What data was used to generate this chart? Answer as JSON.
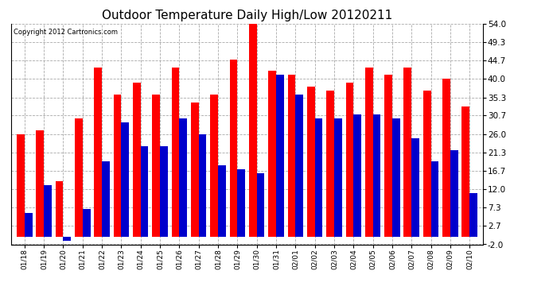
{
  "title": "Outdoor Temperature Daily High/Low 20120211",
  "copyright": "Copyright 2012 Cartronics.com",
  "dates": [
    "01/18",
    "01/19",
    "01/20",
    "01/21",
    "01/22",
    "01/23",
    "01/24",
    "01/25",
    "01/26",
    "01/27",
    "01/28",
    "01/29",
    "01/30",
    "01/31",
    "02/01",
    "02/02",
    "02/03",
    "02/04",
    "02/05",
    "02/06",
    "02/07",
    "02/08",
    "02/09",
    "02/10"
  ],
  "highs": [
    26,
    27,
    14,
    30,
    43,
    36,
    39,
    36,
    43,
    34,
    36,
    45,
    54,
    42,
    41,
    38,
    37,
    39,
    43,
    41,
    43,
    37,
    40,
    33
  ],
  "lows": [
    6,
    13,
    -1,
    7,
    19,
    29,
    23,
    23,
    30,
    26,
    18,
    17,
    16,
    41,
    36,
    30,
    30,
    31,
    31,
    30,
    25,
    19,
    22,
    11
  ],
  "high_color": "#ff0000",
  "low_color": "#0000cc",
  "bg_color": "#ffffff",
  "plot_bg_color": "#ffffff",
  "grid_color": "#aaaaaa",
  "yticks": [
    -2.0,
    2.7,
    7.3,
    12.0,
    16.7,
    21.3,
    26.0,
    30.7,
    35.3,
    40.0,
    44.7,
    49.3,
    54.0
  ],
  "ymin": -2.0,
  "ymax": 54.0,
  "title_fontsize": 11,
  "bar_width": 0.4
}
